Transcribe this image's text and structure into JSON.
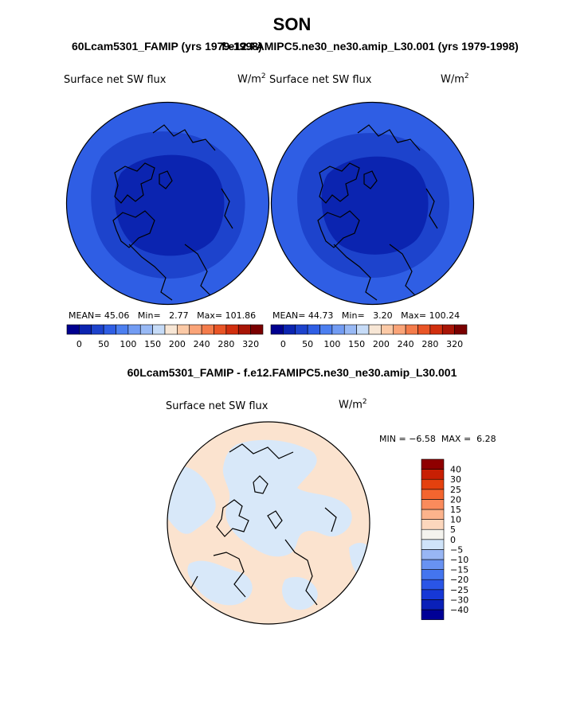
{
  "page": {
    "title": "SON",
    "subtitle_left": "60Lcam5301_FAMIP (yrs 1979-1998)",
    "subtitle_right": "f.e12.FAMIPC5.ne30_ne30.amip_L30.001 (yrs 1979-1998)",
    "diff_title": "60Lcam5301_FAMIP - f.e12.FAMIPC5.ne30_ne30.amip_L30.001"
  },
  "panels": [
    {
      "variable": "Surface net SW flux",
      "units": "W/m",
      "units_exp": "2",
      "stats": {
        "mean_label": "MEAN=",
        "mean": "45.06",
        "min_label": "Min=",
        "min": "2.77",
        "max_label": "Max=",
        "max": "101.86"
      }
    },
    {
      "variable": "Surface net SW flux",
      "units": "W/m",
      "units_exp": "2",
      "stats": {
        "mean_label": "MEAN=",
        "mean": "44.73",
        "min_label": "Min=",
        "min": "3.20",
        "max_label": "Max=",
        "max": "100.24"
      }
    }
  ],
  "diff_panel": {
    "variable": "Surface net SW flux",
    "units": "W/m",
    "units_exp": "2",
    "min_label": "MIN =",
    "min": "−6.58",
    "max_label": "MAX =",
    "max": "6.28"
  },
  "colorbar_main": {
    "colors": [
      "#00008f",
      "#0b24b0",
      "#1d43cc",
      "#2f5ee4",
      "#4c7ff0",
      "#729cf3",
      "#98b9f5",
      "#c6dbf7",
      "#f7e6d5",
      "#fbc9a6",
      "#faa478",
      "#f47c4b",
      "#e95526",
      "#d12f0e",
      "#a81506",
      "#7a0000"
    ],
    "ticks": [
      "0",
      "50",
      "100",
      "150",
      "200",
      "240",
      "280",
      "320"
    ],
    "tick_boundaries": [
      1,
      3,
      5,
      7,
      9,
      11,
      13,
      15
    ]
  },
  "colorbar_diff": {
    "colors": [
      "#000096",
      "#0a20b8",
      "#1638d6",
      "#2a55e6",
      "#4475ef",
      "#6892f2",
      "#98b6f4",
      "#cfe3f9",
      "#f4f3ee",
      "#fcd7bd",
      "#fcb38c",
      "#fa8b5c",
      "#f3652f",
      "#e4410e",
      "#c81f03",
      "#8f0000"
    ],
    "labels": [
      "40",
      "30",
      "25",
      "20",
      "15",
      "10",
      "5",
      "0",
      "−5",
      "−10",
      "−15",
      "−20",
      "−25",
      "−30",
      "−40"
    ]
  },
  "map_colors": {
    "ring1": "#2f5ee4",
    "ring2": "#1d43cc",
    "core": "#0b24b0",
    "diff_base": "#fbe3cf",
    "diff_patch": "#d8e8f9",
    "coast": "#000000"
  }
}
